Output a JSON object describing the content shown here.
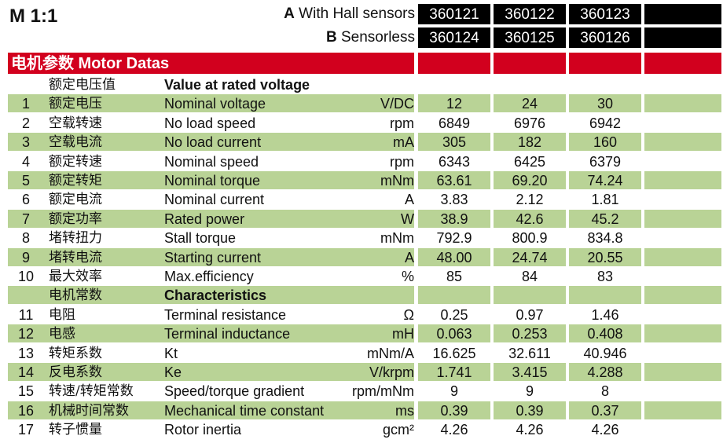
{
  "header": {
    "scale": "M 1:1",
    "variant_a_letter": "A",
    "variant_a_text": " With Hall sensors",
    "variant_b_letter": "B",
    "variant_b_text": " Sensorless",
    "a_parts": [
      "360121",
      "360122",
      "360123"
    ],
    "b_parts": [
      "360124",
      "360125",
      "360126"
    ]
  },
  "section_title": "电机参数 Motor Datas",
  "colors": {
    "red": "#d2001e",
    "green": "#b9d396",
    "black": "#000000"
  },
  "rows": [
    {
      "type": "section",
      "idx": "",
      "cn": "额定电压值",
      "en": "Value at rated voltage",
      "unit": "",
      "v": [
        "",
        "",
        ""
      ],
      "shade": false
    },
    {
      "type": "data",
      "idx": "1",
      "cn": "额定电压",
      "en": "Nominal voltage",
      "unit": "V/DC",
      "v": [
        "12",
        "24",
        "30"
      ],
      "shade": true
    },
    {
      "type": "data",
      "idx": "2",
      "cn": "空载转速",
      "en": "No load speed",
      "unit": "rpm",
      "v": [
        "6849",
        "6976",
        "6942"
      ],
      "shade": false
    },
    {
      "type": "data",
      "idx": "3",
      "cn": "空载电流",
      "en": "No load current",
      "unit": "mA",
      "v": [
        "305",
        "182",
        "160"
      ],
      "shade": true
    },
    {
      "type": "data",
      "idx": "4",
      "cn": "额定转速",
      "en": "Nominal speed",
      "unit": "rpm",
      "v": [
        "6343",
        "6425",
        "6379"
      ],
      "shade": false
    },
    {
      "type": "data",
      "idx": "5",
      "cn": "额定转矩",
      "en": "Nominal torque",
      "unit": "mNm",
      "v": [
        "63.61",
        "69.20",
        "74.24"
      ],
      "shade": true
    },
    {
      "type": "data",
      "idx": "6",
      "cn": "额定电流",
      "en": "Nominal current",
      "unit": "A",
      "v": [
        "3.83",
        "2.12",
        "1.81"
      ],
      "shade": false
    },
    {
      "type": "data",
      "idx": "7",
      "cn": "额定功率",
      "en": "Rated power",
      "unit": "W",
      "v": [
        "38.9",
        "42.6",
        "45.2"
      ],
      "shade": true
    },
    {
      "type": "data",
      "idx": "8",
      "cn": "堵转扭力",
      "en": "Stall torque",
      "unit": "mNm",
      "v": [
        "792.9",
        "800.9",
        "834.8"
      ],
      "shade": false
    },
    {
      "type": "data",
      "idx": "9",
      "cn": "堵转电流",
      "en": "Starting current",
      "unit": "A",
      "v": [
        "48.00",
        "24.74",
        "20.55"
      ],
      "shade": true
    },
    {
      "type": "data",
      "idx": "10",
      "cn": "最大效率",
      "en": "Max.efficiency",
      "unit": "%",
      "v": [
        "85",
        "84",
        "83"
      ],
      "shade": false
    },
    {
      "type": "section",
      "idx": "",
      "cn": "电机常数",
      "en": "Characteristics",
      "unit": "",
      "v": [
        "",
        "",
        ""
      ],
      "shade": true
    },
    {
      "type": "data",
      "idx": "11",
      "cn": "电阻",
      "en": "Terminal resistance",
      "unit": "Ω",
      "v": [
        "0.25",
        "0.97",
        "1.46"
      ],
      "shade": false
    },
    {
      "type": "data",
      "idx": "12",
      "cn": "电感",
      "en": "Terminal inductance",
      "unit": "mH",
      "v": [
        "0.063",
        "0.253",
        "0.408"
      ],
      "shade": true
    },
    {
      "type": "data",
      "idx": "13",
      "cn": "转矩系数",
      "en": "Kt",
      "unit": "mNm/A",
      "v": [
        "16.625",
        "32.611",
        "40.946"
      ],
      "shade": false
    },
    {
      "type": "data",
      "idx": "14",
      "cn": "反电系数",
      "en": "Ke",
      "unit": "V/krpm",
      "v": [
        "1.741",
        "3.415",
        "4.288"
      ],
      "shade": true
    },
    {
      "type": "data",
      "idx": "15",
      "cn": "转速/转矩常数",
      "en": "Speed/torque gradient",
      "unit": "rpm/mNm",
      "v": [
        "9",
        "9",
        "8"
      ],
      "shade": false
    },
    {
      "type": "data",
      "idx": "16",
      "cn": "机械时间常数",
      "en": "Mechanical time constant",
      "unit": "ms",
      "v": [
        "0.39",
        "0.39",
        "0.37"
      ],
      "shade": true
    },
    {
      "type": "data",
      "idx": "17",
      "cn": "转子惯量",
      "en": "Rotor inertia",
      "unit": "gcm²",
      "v": [
        "4.26",
        "4.26",
        "4.26"
      ],
      "shade": false
    }
  ]
}
